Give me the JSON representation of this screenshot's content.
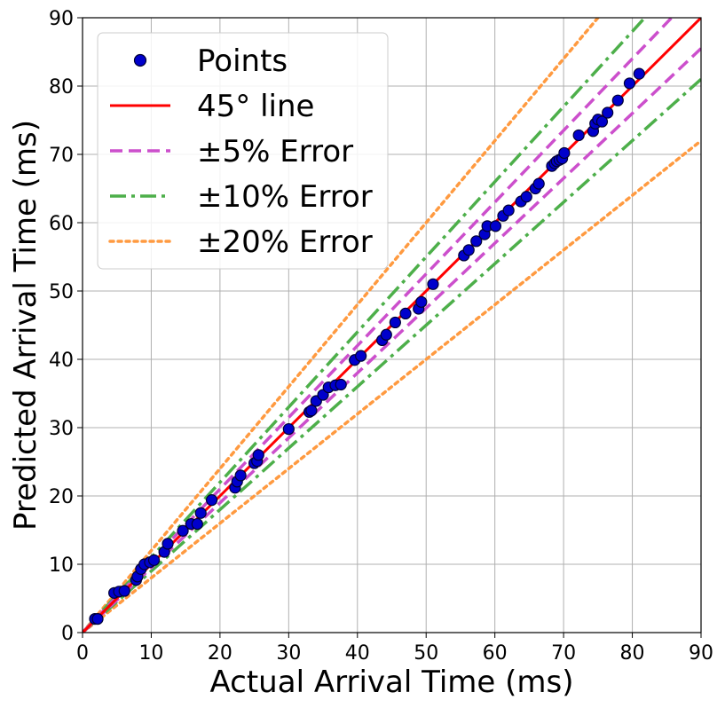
{
  "chart_data": {
    "type": "scatter",
    "title": "",
    "xlabel": "Actual Arrival Time (ms)",
    "ylabel": "Predicted Arrival Time (ms)",
    "xlim": [
      0,
      90
    ],
    "ylim": [
      0,
      90
    ],
    "xticks": [
      0,
      10,
      20,
      30,
      40,
      50,
      60,
      70,
      80,
      90
    ],
    "yticks": [
      0,
      10,
      20,
      30,
      40,
      50,
      60,
      70,
      80,
      90
    ],
    "grid": true,
    "legend_position": "top-left",
    "series": [
      {
        "name": "Points",
        "kind": "scatter",
        "color": "#0000cc",
        "edge_color": "#000033",
        "x": [
          1.8,
          2.2,
          4.6,
          5.3,
          6.1,
          7.8,
          8.0,
          8.5,
          9.0,
          9.8,
          10.4,
          11.9,
          12.4,
          14.6,
          15.8,
          16.7,
          17.2,
          18.8,
          22.2,
          22.5,
          23.0,
          25.0,
          25.4,
          25.6,
          30.0,
          33.0,
          33.3,
          34.0,
          35.0,
          35.8,
          36.8,
          37.6,
          39.6,
          40.5,
          43.6,
          44.2,
          45.5,
          47.0,
          48.9,
          49.3,
          51.0,
          55.5,
          56.2,
          57.3,
          58.5,
          58.9,
          60.1,
          61.2,
          62.0,
          63.8,
          64.6,
          65.9,
          66.4,
          68.3,
          68.7,
          69.0,
          69.4,
          69.8,
          70.1,
          72.2,
          74.3,
          74.6,
          75.0,
          75.6,
          76.4,
          77.9,
          79.6,
          81.0
        ],
        "y": [
          2.0,
          2.0,
          5.8,
          6.0,
          6.1,
          7.7,
          8.2,
          9.3,
          10.0,
          10.3,
          10.6,
          11.8,
          13.0,
          14.9,
          15.9,
          15.9,
          17.5,
          19.4,
          21.2,
          22.1,
          23.0,
          24.8,
          25.1,
          26.0,
          29.8,
          32.3,
          32.5,
          33.9,
          34.8,
          35.9,
          36.2,
          36.3,
          39.9,
          40.5,
          42.8,
          43.6,
          45.4,
          46.7,
          47.4,
          48.4,
          51.0,
          55.2,
          56.0,
          57.3,
          58.3,
          59.5,
          59.5,
          61.0,
          61.8,
          63.1,
          63.8,
          65.0,
          65.7,
          68.3,
          68.7,
          69.0,
          69.2,
          69.4,
          70.2,
          72.8,
          73.4,
          74.5,
          75.1,
          74.8,
          76.1,
          77.9,
          80.4,
          81.8
        ]
      },
      {
        "name": "45° line",
        "kind": "line",
        "slope": 1.0,
        "color": "#ff0000",
        "dash": "solid"
      },
      {
        "name": "±5% Error",
        "kind": "line-pair",
        "slopes": [
          1.05,
          0.95
        ],
        "color": "#cc4fcc",
        "dash": "dashed"
      },
      {
        "name": "±10% Error",
        "kind": "line-pair",
        "slopes": [
          1.1,
          0.9
        ],
        "color": "#4daf4a",
        "dash": "dashdot"
      },
      {
        "name": "±20% Error",
        "kind": "line-pair",
        "slopes": [
          1.2,
          0.8
        ],
        "color": "#ff9a40",
        "dash": "dotted"
      }
    ]
  }
}
